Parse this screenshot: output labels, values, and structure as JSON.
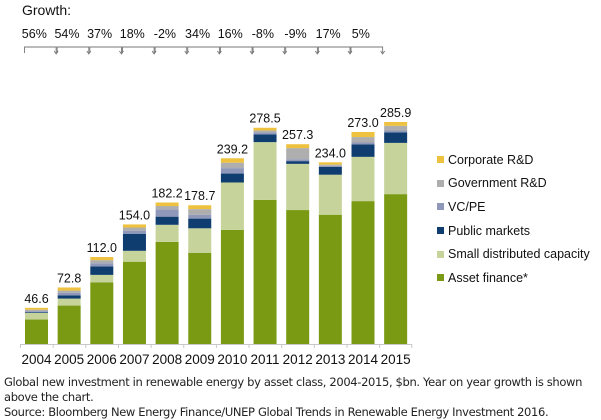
{
  "growth": {
    "title": "Growth:",
    "values": [
      "56%",
      "54%",
      "37%",
      "18%",
      "-2%",
      "34%",
      "16%",
      "-8%",
      "-9%",
      "17%",
      "5%"
    ]
  },
  "caption": {
    "line1": "Global new investment in renewable energy by asset class, 2004-2015, $bn. Year on year growth is shown above the chart.",
    "line2": "Source: Bloomberg New Energy Finance/UNEP Global Trends in Renewable Energy Investment 2016."
  },
  "chart_data": {
    "type": "bar",
    "stacked": true,
    "title": "",
    "xlabel": "",
    "ylabel": "$bn",
    "ylim": [
      0,
      300
    ],
    "grid": false,
    "legend_position": "right",
    "categories": [
      "2004",
      "2005",
      "2006",
      "2007",
      "2008",
      "2009",
      "2010",
      "2011",
      "2012",
      "2013",
      "2014",
      "2015"
    ],
    "totals": [
      46.6,
      72.8,
      112.0,
      154.0,
      182.2,
      178.7,
      239.2,
      278.5,
      257.3,
      234.0,
      273.0,
      285.9
    ],
    "total_labels": [
      "46.6",
      "72.8",
      "112.0",
      "154.0",
      "182.2",
      "178.7",
      "239.2",
      "278.5",
      "257.3",
      "234.0",
      "273.0",
      "285.9"
    ],
    "series": [
      {
        "name": "Asset finance*",
        "color": "#7a9a14",
        "values": [
          31.5,
          49.5,
          79.5,
          106.0,
          131.5,
          117.5,
          147.0,
          185.5,
          172.5,
          166.5,
          184.0,
          193.0
        ]
      },
      {
        "name": "Small distributed capacity",
        "color": "#c6d49b",
        "values": [
          8.5,
          9.0,
          9.5,
          14.0,
          22.0,
          31.5,
          61.0,
          74.5,
          59.5,
          51.5,
          57.0,
          66.0
        ]
      },
      {
        "name": "Public markets",
        "color": "#0f3d70",
        "values": [
          1.0,
          4.0,
          11.0,
          22.0,
          10.5,
          12.5,
          11.5,
          10.0,
          3.5,
          10.0,
          16.0,
          13.5
        ]
      },
      {
        "name": "VC/PE",
        "color": "#8f98b9",
        "values": [
          1.3,
          3.3,
          4.0,
          4.0,
          9.5,
          5.0,
          7.0,
          2.5,
          2.5,
          1.5,
          2.5,
          2.5
        ]
      },
      {
        "name": "Government R&D",
        "color": "#aeaeae",
        "values": [
          1.9,
          3.0,
          4.0,
          4.0,
          4.2,
          7.2,
          7.0,
          2.5,
          14.3,
          1.5,
          7.0,
          6.0
        ]
      },
      {
        "name": "Corporate R&D",
        "color": "#eec13f",
        "values": [
          2.4,
          4.0,
          4.0,
          4.0,
          4.5,
          5.0,
          5.7,
          3.5,
          5.0,
          3.0,
          6.5,
          4.9
        ]
      }
    ],
    "legend_order": [
      "Corporate R&D",
      "Government R&D",
      "VC/PE",
      "Public markets",
      "Small distributed capacity",
      "Asset finance*"
    ]
  }
}
